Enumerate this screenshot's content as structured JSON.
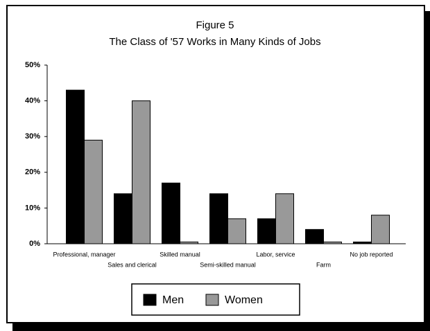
{
  "chart_data": {
    "type": "bar",
    "title": "Figure 5",
    "subtitle": "The Class of '57 Works in Many Kinds of Jobs",
    "categories": [
      "Professional, manager",
      "Sales and clerical",
      "Skilled manual",
      "Semi-skilled manual",
      "Labor, service",
      "Farm",
      "No job reported"
    ],
    "series": [
      {
        "name": "Men",
        "color": "#000000",
        "values": [
          43,
          14,
          17,
          14,
          7,
          4,
          0.5
        ]
      },
      {
        "name": "Women",
        "color": "#999999",
        "values": [
          29,
          40,
          0.5,
          7,
          14,
          0.5,
          8
        ]
      }
    ],
    "ylim": [
      0,
      50
    ],
    "yticks": [
      {
        "value": 0,
        "label": "0%"
      },
      {
        "value": 10,
        "label": "10%"
      },
      {
        "value": 20,
        "label": "20%"
      },
      {
        "value": 30,
        "label": "30%"
      },
      {
        "value": 40,
        "label": "40%"
      },
      {
        "value": 50,
        "label": "50%"
      }
    ],
    "grid": false,
    "legend": "bottom"
  }
}
